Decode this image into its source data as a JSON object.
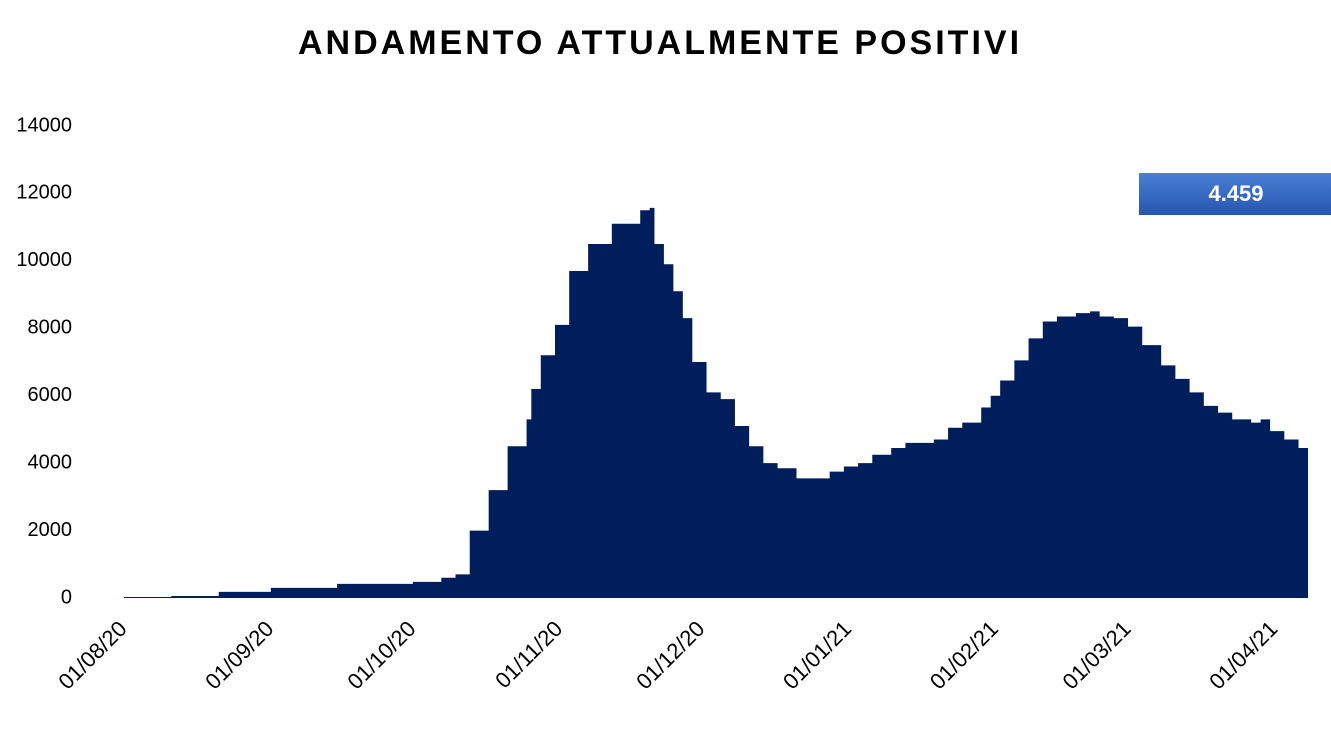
{
  "chart_data": {
    "type": "area",
    "title": "ANDAMENTO ATTUALMENTE POSITIVI",
    "x": [
      "01/08/20",
      "11/08/20",
      "21/08/20",
      "01/09/20",
      "15/09/20",
      "01/10/20",
      "07/10/20",
      "10/10/20",
      "13/10/20",
      "17/10/20",
      "21/10/20",
      "25/10/20",
      "26/10/20",
      "28/10/20",
      "31/10/20",
      "03/11/20",
      "07/11/20",
      "12/11/20",
      "18/11/20",
      "20/11/20",
      "21/11/20",
      "23/11/20",
      "25/11/20",
      "27/11/20",
      "29/11/20",
      "02/12/20",
      "05/12/20",
      "08/12/20",
      "11/12/20",
      "14/12/20",
      "17/12/20",
      "21/12/20",
      "25/12/20",
      "28/12/20",
      "31/12/20",
      "03/01/21",
      "06/01/21",
      "10/01/21",
      "13/01/21",
      "16/01/21",
      "19/01/21",
      "22/01/21",
      "25/01/21",
      "29/01/21",
      "31/01/21",
      "02/02/21",
      "05/02/21",
      "08/02/21",
      "11/02/21",
      "14/02/21",
      "18/02/21",
      "21/02/21",
      "23/02/21",
      "26/02/21",
      "01/03/21",
      "04/03/21",
      "08/03/21",
      "11/03/21",
      "14/03/21",
      "17/03/21",
      "20/03/21",
      "23/03/21",
      "27/03/21",
      "29/03/21",
      "31/03/21",
      "03/04/21",
      "06/04/21",
      "08/04/21"
    ],
    "values": [
      30,
      60,
      180,
      300,
      420,
      480,
      600,
      700,
      2000,
      3200,
      4500,
      5300,
      6200,
      7200,
      8100,
      9700,
      10500,
      11100,
      11500,
      11570,
      10500,
      9900,
      9100,
      8300,
      7000,
      6100,
      5900,
      5100,
      4500,
      4000,
      3850,
      3550,
      3550,
      3750,
      3900,
      4000,
      4250,
      4450,
      4600,
      4600,
      4700,
      5050,
      5200,
      5650,
      6000,
      6450,
      7050,
      7700,
      8200,
      8350,
      8450,
      8500,
      8350,
      8300,
      8050,
      7500,
      6900,
      6500,
      6100,
      5700,
      5500,
      5300,
      5200,
      5300,
      4950,
      4700,
      4450,
      4459
    ],
    "value_labels": [
      null,
      null,
      null,
      null,
      null,
      null,
      null,
      null,
      null,
      null,
      null,
      null,
      null,
      null,
      null,
      null,
      null,
      null,
      null,
      null,
      null,
      null,
      null,
      null,
      null,
      null,
      null,
      null,
      null,
      null,
      null,
      null,
      null,
      null,
      null,
      null,
      null,
      null,
      null,
      null,
      null,
      null,
      null,
      null,
      null,
      null,
      null,
      null,
      null,
      null,
      null,
      null,
      null,
      null,
      null,
      null,
      null,
      null,
      null,
      null,
      null,
      null,
      null,
      null,
      null,
      null,
      null,
      "4.459"
    ],
    "color": "#001d5c",
    "xlim": [
      "01/08/20",
      "08/04/21"
    ],
    "xticks": [
      "01/08/20",
      "01/09/20",
      "01/10/20",
      "01/11/20",
      "01/12/20",
      "01/01/21",
      "01/02/21",
      "01/03/21",
      "01/04/21"
    ],
    "ylim": [
      0,
      14000
    ],
    "yticks": [
      0,
      2000,
      4000,
      6000,
      8000,
      10000,
      12000,
      14000
    ],
    "grid": false
  }
}
